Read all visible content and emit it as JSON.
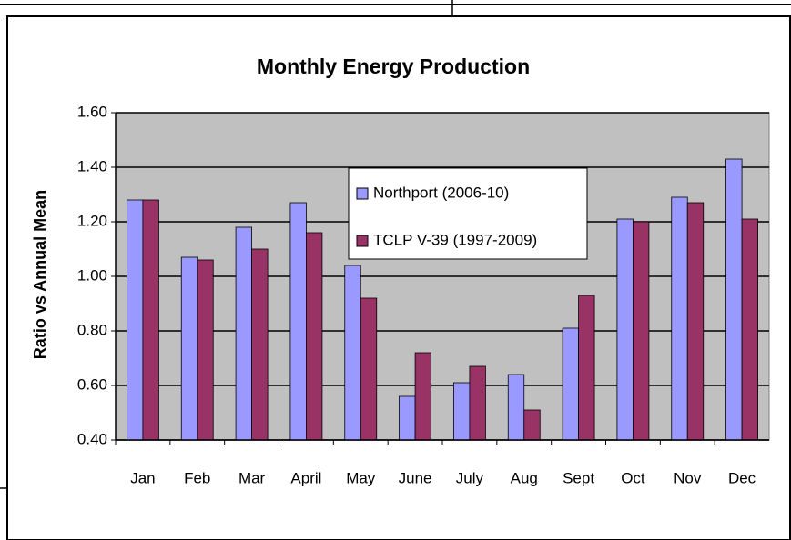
{
  "chart_data": {
    "type": "bar",
    "title": "Monthly Energy Production",
    "y_label": "Ratio vs Annual Mean",
    "categories": [
      "Jan",
      "Feb",
      "Mar",
      "April",
      "May",
      "June",
      "July",
      "Aug",
      "Sept",
      "Oct",
      "Nov",
      "Dec"
    ],
    "series": [
      {
        "name": "Northport (2006-10)",
        "color": "#9999ff",
        "values": [
          1.28,
          1.07,
          1.18,
          1.27,
          1.04,
          0.56,
          0.61,
          0.64,
          0.81,
          1.21,
          1.29,
          1.43
        ]
      },
      {
        "name": "TCLP V-39 (1997-2009)",
        "color": "#993366",
        "values": [
          1.28,
          1.06,
          1.1,
          1.16,
          0.92,
          0.72,
          0.67,
          0.51,
          0.93,
          1.2,
          1.27,
          1.21
        ]
      }
    ],
    "ylim": [
      0.4,
      1.6
    ],
    "yticks": [
      {
        "value": 0.4,
        "label": "0.40"
      },
      {
        "value": 0.6,
        "label": "0.60"
      },
      {
        "value": 0.8,
        "label": "0.80"
      },
      {
        "value": 1.0,
        "label": "1.00"
      },
      {
        "value": 1.2,
        "label": "1.20"
      },
      {
        "value": 1.4,
        "label": "1.40"
      },
      {
        "value": 1.6,
        "label": "1.60"
      }
    ],
    "grid": true,
    "plot_background": "#c0c0c0"
  }
}
